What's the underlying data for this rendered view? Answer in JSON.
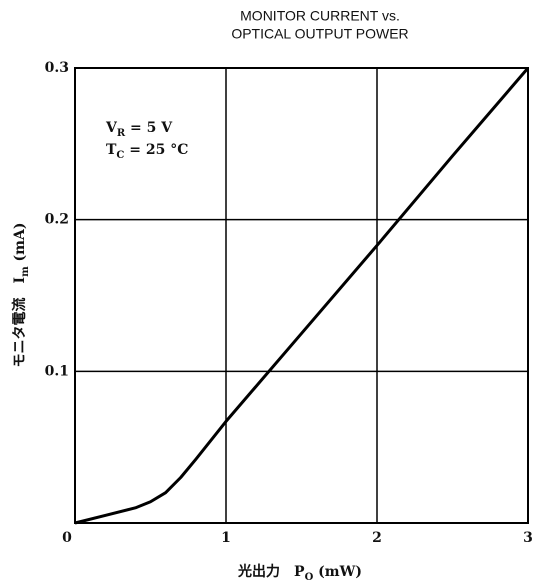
{
  "chart_data": {
    "type": "line",
    "title": [
      "MONITOR CURRENT vs.",
      "OPTICAL OUTPUT POWER"
    ],
    "x_label": {
      "text": "光出力　P",
      "sub": "O",
      "after": " (mW)"
    },
    "y_label": {
      "text": "モニタ電流　I",
      "sub": "m",
      "after": " (mA)"
    },
    "annotations": [
      {
        "text": "V",
        "sub": "R",
        "after": " = 5 V"
      },
      {
        "text": "T",
        "sub": "C",
        "after": " = 25 °C"
      }
    ],
    "x": [
      0,
      0.2,
      0.4,
      0.5,
      0.6,
      0.7,
      0.8,
      1.0,
      1.5,
      2.0,
      2.5,
      3.0
    ],
    "series": [
      {
        "color": "#000000",
        "values": [
          0,
          0.005,
          0.01,
          0.014,
          0.02,
          0.03,
          0.042,
          0.067,
          0.125,
          0.183,
          0.242,
          0.3
        ]
      }
    ],
    "xlim": [
      0,
      3
    ],
    "xticks": [
      0,
      1,
      2,
      3
    ],
    "ylim": [
      0,
      0.3
    ],
    "yticks": [
      0.1,
      0.2,
      0.3
    ],
    "grid": true
  }
}
